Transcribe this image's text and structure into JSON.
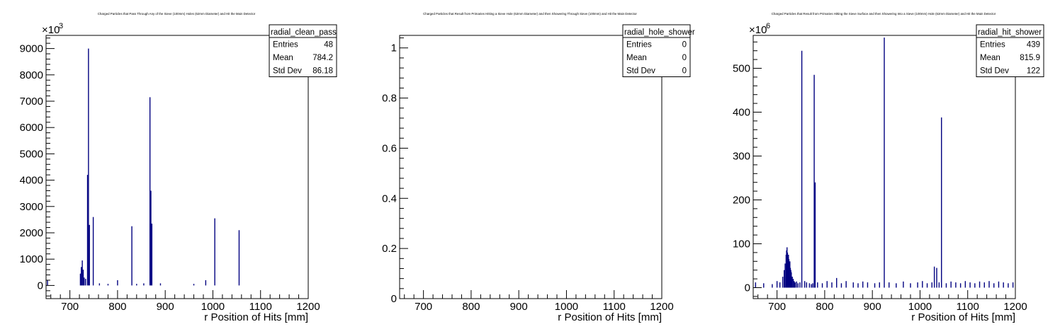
{
  "canvas": {
    "background": "#ffffff",
    "frame_color": "#000000",
    "hist_color": "#000080"
  },
  "chart_data": [
    {
      "type": "bar",
      "subtype": "histogram",
      "title": "Charged Particles that Pass Through Any of the Sieve (100mm) Holes (62mm Diameter) and Hit the Main Detector",
      "xlabel": "r Position of Hits [mm]",
      "ylabel": "",
      "y_multiplier": "×10",
      "y_exponent": "3",
      "xlim": [
        650,
        1200
      ],
      "ylim": [
        -500,
        9500
      ],
      "x_ticks": [
        700,
        800,
        900,
        1000,
        1100,
        1200
      ],
      "y_ticks": [
        0,
        1000,
        2000,
        3000,
        4000,
        5000,
        6000,
        7000,
        8000,
        9000
      ],
      "stats": {
        "name": "radial_clean_pass",
        "rows": [
          {
            "label": "Entries",
            "value": "48"
          },
          {
            "label": "Mean",
            "value": "784.2"
          },
          {
            "label": "Std Dev",
            "value": "86.18"
          }
        ]
      },
      "bins": [
        [
          653,
          200
        ],
        [
          722,
          450
        ],
        [
          724,
          700
        ],
        [
          726,
          950
        ],
        [
          728,
          600
        ],
        [
          730,
          300
        ],
        [
          733,
          250
        ],
        [
          737,
          4200
        ],
        [
          739,
          9000
        ],
        [
          741,
          2300
        ],
        [
          749,
          2600
        ],
        [
          762,
          80
        ],
        [
          780,
          60
        ],
        [
          800,
          200
        ],
        [
          830,
          2250
        ],
        [
          840,
          60
        ],
        [
          855,
          80
        ],
        [
          868,
          7150
        ],
        [
          870,
          3600
        ],
        [
          872,
          2350
        ],
        [
          890,
          80
        ],
        [
          960,
          60
        ],
        [
          985,
          200
        ],
        [
          1004,
          2550
        ],
        [
          1055,
          2100
        ]
      ]
    },
    {
      "type": "bar",
      "subtype": "histogram",
      "title": "Charged Particles that Result from Primaries Hitting a Sieve Hole (62mm Diameter) and then Showering Through Sieve (100mm) and Hit the Main Detector",
      "xlabel": "r Position of Hits [mm]",
      "ylabel": "",
      "y_multiplier": "",
      "y_exponent": "",
      "xlim": [
        650,
        1200
      ],
      "ylim": [
        0,
        1.05
      ],
      "x_ticks": [
        700,
        800,
        900,
        1000,
        1100,
        1200
      ],
      "y_ticks": [
        0,
        0.2,
        0.4,
        0.6,
        0.8,
        1
      ],
      "stats": {
        "name": "radial_hole_shower",
        "rows": [
          {
            "label": "Entries",
            "value": "0"
          },
          {
            "label": "Mean",
            "value": "0"
          },
          {
            "label": "Std Dev",
            "value": "0"
          }
        ]
      },
      "bins": []
    },
    {
      "type": "bar",
      "subtype": "histogram",
      "title": "Charged Particles that Result from Primaries Hitting the Sieve Surface and then Showering Into a Sieve (100mm) Hole (62mm Diameter) and Hit the Main Detector",
      "xlabel": "r Position of Hits [mm]",
      "ylabel": "",
      "y_multiplier": "×10",
      "y_exponent": "6",
      "xlim": [
        650,
        1200
      ],
      "ylim": [
        -25,
        575
      ],
      "x_ticks": [
        700,
        800,
        900,
        1000,
        1100,
        1200
      ],
      "y_ticks": [
        0,
        100,
        200,
        300,
        400,
        500
      ],
      "stats": {
        "name": "radial_hit_shower",
        "rows": [
          {
            "label": "Entries",
            "value": "439"
          },
          {
            "label": "Mean",
            "value": "815.9"
          },
          {
            "label": "Std Dev",
            "value": "122"
          }
        ]
      },
      "bins": [
        [
          655,
          12
        ],
        [
          672,
          10
        ],
        [
          690,
          8
        ],
        [
          700,
          15
        ],
        [
          706,
          12
        ],
        [
          712,
          25
        ],
        [
          715,
          40
        ],
        [
          717,
          55
        ],
        [
          719,
          75
        ],
        [
          720,
          85
        ],
        [
          721,
          92
        ],
        [
          722,
          80
        ],
        [
          723,
          70
        ],
        [
          724,
          75
        ],
        [
          725,
          65
        ],
        [
          726,
          55
        ],
        [
          727,
          60
        ],
        [
          728,
          45
        ],
        [
          729,
          40
        ],
        [
          730,
          35
        ],
        [
          732,
          25
        ],
        [
          734,
          20
        ],
        [
          736,
          15
        ],
        [
          738,
          12
        ],
        [
          741,
          14
        ],
        [
          744,
          10
        ],
        [
          748,
          12
        ],
        [
          752,
          540
        ],
        [
          758,
          15
        ],
        [
          762,
          12
        ],
        [
          768,
          10
        ],
        [
          772,
          8
        ],
        [
          775,
          10
        ],
        [
          778,
          485
        ],
        [
          780,
          240
        ],
        [
          785,
          12
        ],
        [
          795,
          10
        ],
        [
          805,
          15
        ],
        [
          815,
          12
        ],
        [
          825,
          22
        ],
        [
          835,
          10
        ],
        [
          845,
          15
        ],
        [
          860,
          12
        ],
        [
          870,
          10
        ],
        [
          880,
          14
        ],
        [
          890,
          12
        ],
        [
          905,
          10
        ],
        [
          915,
          12
        ],
        [
          925,
          570
        ],
        [
          935,
          12
        ],
        [
          950,
          10
        ],
        [
          965,
          14
        ],
        [
          980,
          10
        ],
        [
          995,
          12
        ],
        [
          1005,
          15
        ],
        [
          1015,
          10
        ],
        [
          1025,
          12
        ],
        [
          1030,
          48
        ],
        [
          1035,
          45
        ],
        [
          1040,
          12
        ],
        [
          1045,
          388
        ],
        [
          1055,
          10
        ],
        [
          1065,
          14
        ],
        [
          1075,
          12
        ],
        [
          1085,
          10
        ],
        [
          1095,
          15
        ],
        [
          1105,
          12
        ],
        [
          1115,
          10
        ],
        [
          1125,
          14
        ],
        [
          1135,
          12
        ],
        [
          1145,
          15
        ],
        [
          1155,
          10
        ],
        [
          1165,
          14
        ],
        [
          1175,
          12
        ],
        [
          1185,
          10
        ],
        [
          1195,
          12
        ]
      ]
    }
  ]
}
